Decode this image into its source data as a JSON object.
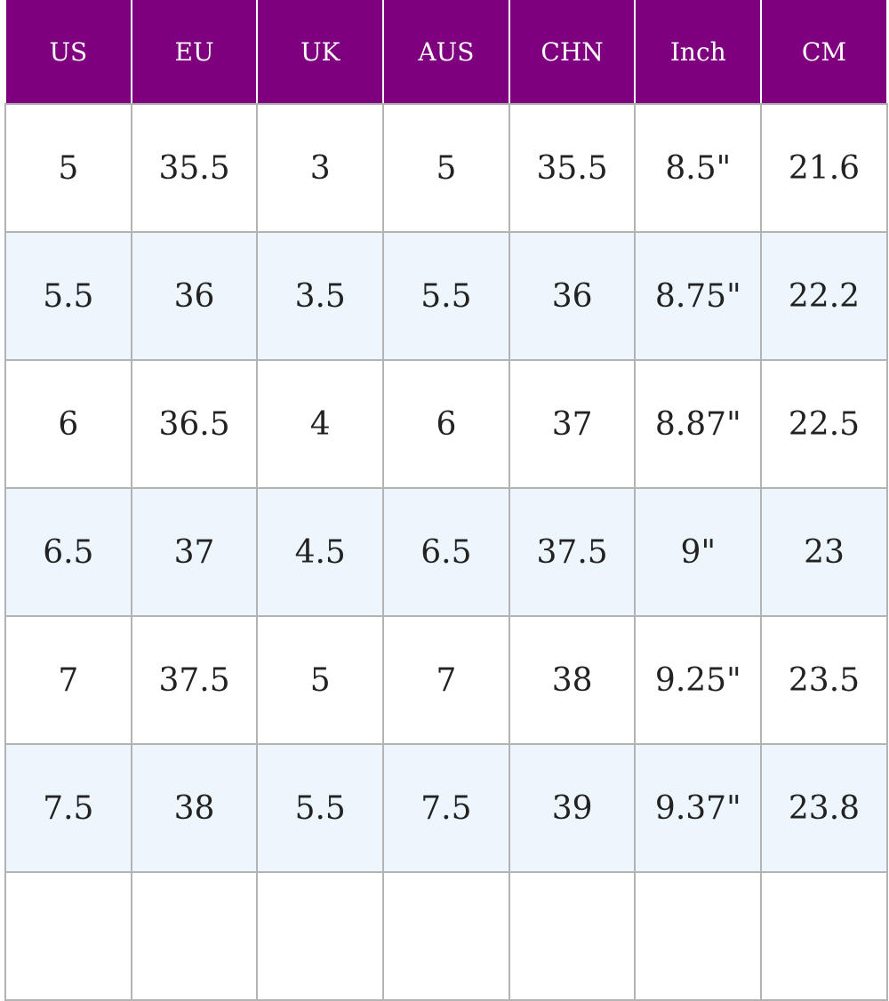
{
  "table": {
    "headers": [
      "US",
      "EU",
      "UK",
      "AUS",
      "CHN",
      "Inch",
      "CM"
    ],
    "rows": [
      [
        "5",
        "35.5",
        "3",
        "5",
        "35.5",
        "8.5\"",
        "21.6"
      ],
      [
        "5.5",
        "36",
        "3.5",
        "5.5",
        "36",
        "8.75\"",
        "22.2"
      ],
      [
        "6",
        "36.5",
        "4",
        "6",
        "37",
        "8.87\"",
        "22.5"
      ],
      [
        "6.5",
        "37",
        "4.5",
        "6.5",
        "37.5",
        "9\"",
        "23"
      ],
      [
        "7",
        "37.5",
        "5",
        "7",
        "38",
        "9.25\"",
        "23.5"
      ],
      [
        "7.5",
        "38",
        "5.5",
        "7.5",
        "39",
        "9.37\"",
        "23.8"
      ],
      [
        "",
        "",
        "",
        "",
        "",
        "",
        ""
      ]
    ]
  },
  "colors": {
    "header_background": "#7f007f",
    "header_text": "#ffffff",
    "row_alt_background": "#eef6fd",
    "row_background": "#ffffff",
    "grid_line": "#b3b3b3"
  }
}
